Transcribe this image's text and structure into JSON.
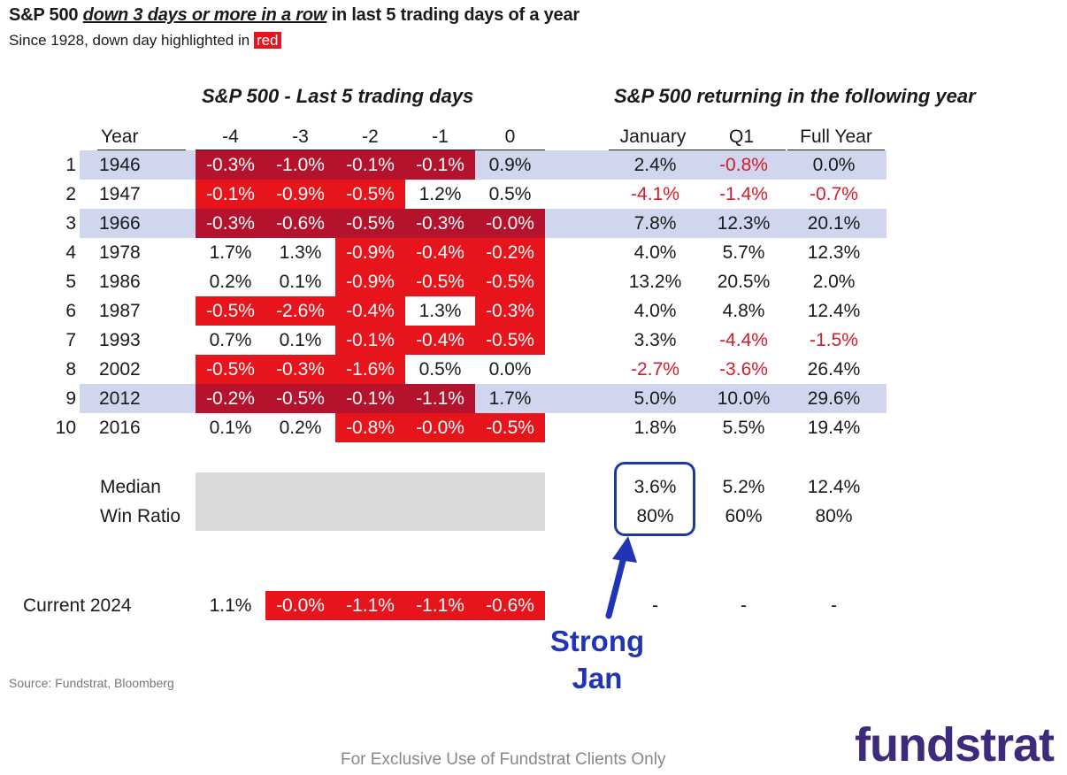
{
  "title": {
    "prefix": "S&P 500 ",
    "emphasis": "down 3 days or more in a row",
    "suffix": " in last 5 trading days of a year"
  },
  "subtitle": {
    "text": "Since 1928, down day highlighted in ",
    "chip": "red"
  },
  "chart_data": {
    "type": "table",
    "section_left": "S&P 500 - Last 5 trading days",
    "section_right": "S&P 500 returning in the following year",
    "columns": [
      "Year",
      "-4",
      "-3",
      "-2",
      "-1",
      "0",
      "January",
      "Q1",
      "Full Year"
    ],
    "rows": [
      {
        "num": "1",
        "year": "1946",
        "days": [
          "-0.3%",
          "-1.0%",
          "-0.1%",
          "-0.1%",
          "0.9%"
        ],
        "returns": [
          "2.4%",
          "-0.8%",
          "0.0%"
        ]
      },
      {
        "num": "2",
        "year": "1947",
        "days": [
          "-0.1%",
          "-0.9%",
          "-0.5%",
          "1.2%",
          "0.5%"
        ],
        "returns": [
          "-4.1%",
          "-1.4%",
          "-0.7%"
        ]
      },
      {
        "num": "3",
        "year": "1966",
        "days": [
          "-0.3%",
          "-0.6%",
          "-0.5%",
          "-0.3%",
          "-0.0%"
        ],
        "returns": [
          "7.8%",
          "12.3%",
          "20.1%"
        ]
      },
      {
        "num": "4",
        "year": "1978",
        "days": [
          "1.7%",
          "1.3%",
          "-0.9%",
          "-0.4%",
          "-0.2%"
        ],
        "returns": [
          "4.0%",
          "5.7%",
          "12.3%"
        ]
      },
      {
        "num": "5",
        "year": "1986",
        "days": [
          "0.2%",
          "0.1%",
          "-0.9%",
          "-0.5%",
          "-0.5%"
        ],
        "returns": [
          "13.2%",
          "20.5%",
          "2.0%"
        ]
      },
      {
        "num": "6",
        "year": "1987",
        "days": [
          "-0.5%",
          "-2.6%",
          "-0.4%",
          "1.3%",
          "-0.3%"
        ],
        "returns": [
          "4.0%",
          "4.8%",
          "12.4%"
        ]
      },
      {
        "num": "7",
        "year": "1993",
        "days": [
          "0.7%",
          "0.1%",
          "-0.1%",
          "-0.4%",
          "-0.5%"
        ],
        "returns": [
          "3.3%",
          "-4.4%",
          "-1.5%"
        ]
      },
      {
        "num": "8",
        "year": "2002",
        "days": [
          "-0.5%",
          "-0.3%",
          "-1.6%",
          "0.5%",
          "0.0%"
        ],
        "returns": [
          "-2.7%",
          "-3.6%",
          "26.4%"
        ]
      },
      {
        "num": "9",
        "year": "2012",
        "days": [
          "-0.2%",
          "-0.5%",
          "-0.1%",
          "-1.1%",
          "1.7%"
        ],
        "returns": [
          "5.0%",
          "10.0%",
          "29.6%"
        ]
      },
      {
        "num": "10",
        "year": "2016",
        "days": [
          "0.1%",
          "0.2%",
          "-0.8%",
          "-0.0%",
          "-0.5%"
        ],
        "returns": [
          "1.8%",
          "5.5%",
          "19.4%"
        ]
      }
    ],
    "highlighted_rows": [
      1,
      3,
      9
    ],
    "summary": [
      {
        "label": "Median",
        "returns": [
          "3.6%",
          "5.2%",
          "12.4%"
        ]
      },
      {
        "label": "Win Ratio",
        "returns": [
          "80%",
          "60%",
          "80%"
        ]
      }
    ],
    "current": {
      "label": "Current 2024",
      "days": [
        "1.1%",
        "-0.0%",
        "-1.1%",
        "-1.1%",
        "-0.6%"
      ],
      "returns": [
        "-",
        "-",
        "-"
      ]
    },
    "annotation": [
      "Strong",
      "Jan"
    ]
  },
  "colors": {
    "down_day": "#e8141b",
    "down_day_banded": "#b5132d",
    "band": "#cfd6ee",
    "negative_return": "#d01c2b",
    "annotation": "#1f35b5"
  },
  "source": "Source: Fundstrat, Bloomberg",
  "footer": "For Exclusive Use of Fundstrat Clients Only",
  "logo": "fundstrat"
}
